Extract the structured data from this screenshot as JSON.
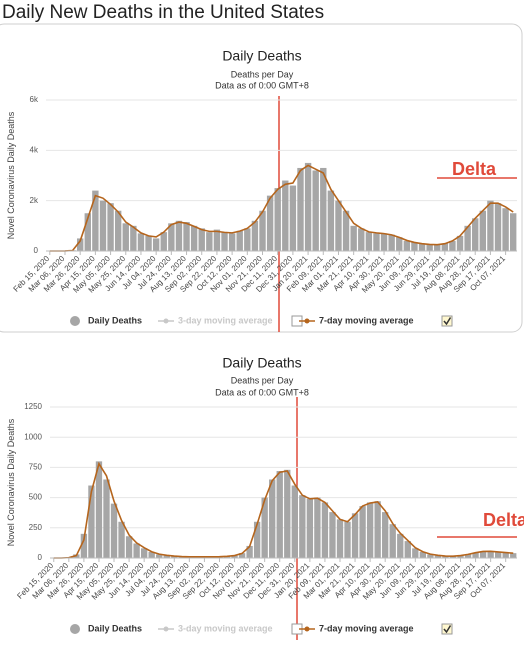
{
  "header": {
    "title": "Daily New Deaths in the United States"
  },
  "chart_data": [
    {
      "type": "bar",
      "title": "Daily Deaths",
      "subtitle": [
        "Deaths per Day",
        "Data as of 0:00 GMT+8"
      ],
      "ylabel": "Novel Coronavirus Daily Deaths",
      "annotation": "Delta",
      "categories": [
        "Feb 15, 2020",
        null,
        "Mar 06, 2020",
        null,
        "Mar 26, 2020",
        null,
        "Apr 15, 2020",
        null,
        "May 05, 2020",
        null,
        "May 25, 2020",
        null,
        "Jun 14, 2020",
        null,
        "Jul 04, 2020",
        null,
        "Jul 24, 2020",
        null,
        "Aug 13, 2020",
        null,
        "Sep 02, 2020",
        null,
        "Sep 22, 2020",
        null,
        "Oct 12, 2020",
        null,
        "Nov 01, 2020",
        null,
        "Nov 21, 2020",
        null,
        "Dec 11, 2020",
        null,
        "Dec 31, 2020",
        null,
        "Jan 20, 2021",
        null,
        "Feb 09, 2021",
        null,
        "Mar 01, 2021",
        null,
        "Mar 21, 2021",
        null,
        "Apr 10, 2021",
        null,
        "Apr 30, 2021",
        null,
        "May 20, 2021",
        null,
        "Jun 09, 2021",
        null,
        "Jun 29, 2021",
        null,
        "Jul 19, 2021",
        null,
        "Aug 08, 2021",
        null,
        "Aug 28, 2021",
        null,
        "Sep 17, 2021",
        null,
        "Oct 07, 2021",
        null
      ],
      "series": [
        {
          "name": "Daily Deaths",
          "type": "bar",
          "color": "#a6a6a6",
          "checked": true,
          "values": [
            0,
            0,
            5,
            30,
            500,
            1500,
            2400,
            2000,
            1900,
            1600,
            1100,
            1000,
            700,
            600,
            500,
            750,
            1100,
            1200,
            1150,
            1000,
            900,
            750,
            850,
            750,
            700,
            800,
            900,
            1200,
            1600,
            2200,
            2500,
            2800,
            2600,
            3300,
            3500,
            3200,
            3300,
            2400,
            2000,
            1600,
            1000,
            900,
            750,
            700,
            700,
            650,
            550,
            400,
            350,
            300,
            250,
            250,
            300,
            400,
            600,
            1000,
            1300,
            1600,
            2000,
            1900,
            1700,
            1500
          ]
        },
        {
          "name": "3-day moving average",
          "type": "line",
          "color": "#c8c8c8",
          "checked": false,
          "visible": false
        },
        {
          "name": "7-day moving average",
          "type": "line",
          "color": "#b5651d",
          "checked": true,
          "values": [
            0,
            0,
            3,
            20,
            400,
            1300,
            2200,
            2100,
            1850,
            1550,
            1150,
            950,
            720,
            600,
            560,
            750,
            1050,
            1150,
            1100,
            980,
            850,
            780,
            780,
            740,
            720,
            790,
            900,
            1150,
            1550,
            2100,
            2450,
            2650,
            2700,
            3200,
            3400,
            3250,
            3100,
            2450,
            2000,
            1550,
            1100,
            900,
            760,
            720,
            690,
            640,
            540,
            420,
            340,
            290,
            260,
            250,
            290,
            400,
            600,
            950,
            1300,
            1600,
            1900,
            1900,
            1750,
            1550
          ]
        }
      ],
      "ylim": [
        0,
        6000
      ],
      "yticks": [
        0,
        {
          "value": 2000,
          "label": "2k"
        },
        {
          "value": 4000,
          "label": "4k"
        },
        {
          "value": 6000,
          "label": "6k"
        }
      ],
      "grid": true
    },
    {
      "type": "bar",
      "title": "Daily Deaths",
      "subtitle": [
        "Deaths per Day",
        "Data as of 0:00 GMT+8"
      ],
      "ylabel": "Novel Coronavirus Daily Deaths",
      "annotation": "Delta",
      "categories": [
        "Feb 15, 2020",
        null,
        "Mar 06, 2020",
        null,
        "Mar 26, 2020",
        null,
        "Apr 15, 2020",
        null,
        "May 05, 2020",
        null,
        "May 25, 2020",
        null,
        "Jun 14, 2020",
        null,
        "Jul 04, 2020",
        null,
        "Jul 24, 2020",
        null,
        "Aug 13, 2020",
        null,
        "Sep 02, 2020",
        null,
        "Sep 22, 2020",
        null,
        "Oct 12, 2020",
        null,
        "Nov 01, 2020",
        null,
        "Nov 21, 2020",
        null,
        "Dec 11, 2020",
        null,
        "Dec 31, 2020",
        null,
        "Jan 20, 2021",
        null,
        "Feb 09, 2021",
        null,
        "Mar 01, 2021",
        null,
        "Mar 21, 2021",
        null,
        "Apr 10, 2021",
        null,
        "Apr 30, 2021",
        null,
        "May 20, 2021",
        null,
        "Jun 09, 2021",
        null,
        "Jun 29, 2021",
        null,
        "Jul 19, 2021",
        null,
        "Aug 08, 2021",
        null,
        "Aug 28, 2021",
        null,
        "Sep 17, 2021",
        null,
        "Oct 07, 2021",
        null
      ],
      "series": [
        {
          "name": "Daily Deaths",
          "type": "bar",
          "color": "#a6a6a6",
          "checked": true,
          "values": [
            0,
            0,
            5,
            30,
            200,
            600,
            800,
            650,
            450,
            300,
            180,
            120,
            80,
            50,
            30,
            20,
            15,
            12,
            10,
            10,
            10,
            10,
            12,
            15,
            20,
            40,
            100,
            300,
            500,
            650,
            720,
            730,
            600,
            520,
            490,
            500,
            460,
            380,
            320,
            300,
            370,
            430,
            460,
            470,
            380,
            280,
            200,
            140,
            80,
            50,
            30,
            20,
            15,
            15,
            20,
            30,
            45,
            55,
            55,
            50,
            45,
            40
          ]
        },
        {
          "name": "3-day moving average",
          "type": "line",
          "color": "#c8c8c8",
          "checked": false,
          "visible": false
        },
        {
          "name": "7-day moving average",
          "type": "line",
          "color": "#b5651d",
          "checked": true,
          "values": [
            0,
            0,
            3,
            20,
            150,
            550,
            780,
            680,
            470,
            310,
            190,
            125,
            85,
            52,
            32,
            22,
            16,
            12,
            10,
            10,
            10,
            10,
            11,
            14,
            20,
            38,
            95,
            280,
            480,
            640,
            710,
            720,
            610,
            520,
            490,
            495,
            460,
            390,
            320,
            300,
            360,
            430,
            455,
            465,
            390,
            285,
            205,
            145,
            85,
            52,
            32,
            22,
            16,
            15,
            20,
            30,
            44,
            54,
            55,
            50,
            45,
            40
          ]
        }
      ],
      "ylim": [
        0,
        1250
      ],
      "yticks": [
        0,
        250,
        500,
        750,
        1000,
        1250
      ],
      "grid": true
    }
  ]
}
